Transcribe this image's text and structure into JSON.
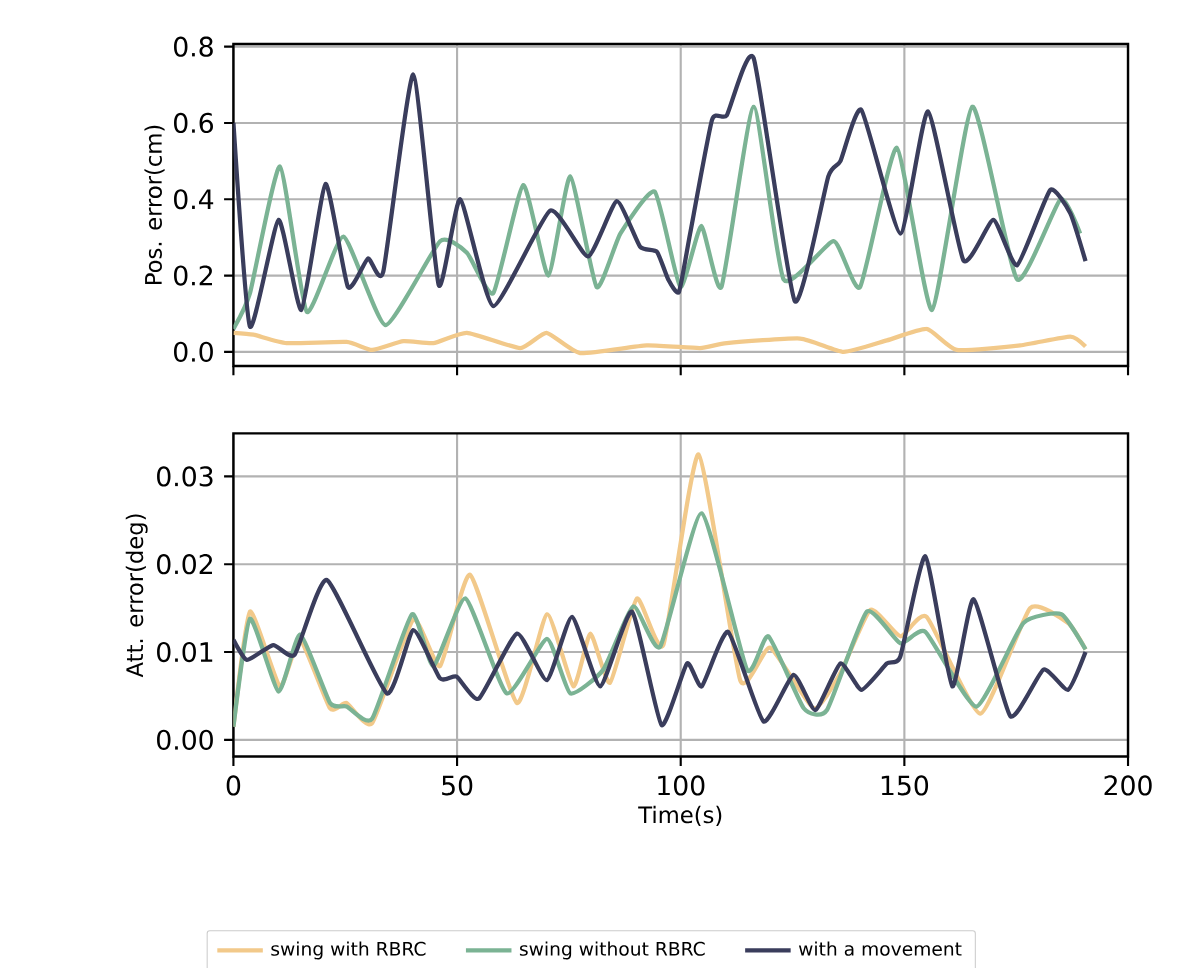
{
  "chart_data": [
    {
      "type": "line",
      "ylabel": "Pos. error(cm)",
      "xlim": [
        0,
        200
      ],
      "xticks": [
        0,
        50,
        100,
        150,
        200
      ],
      "ylim": [
        -0.037,
        0.807
      ],
      "yticks": [
        {
          "value": 0,
          "label": "0.0"
        },
        0.2,
        0.4,
        0.6,
        0.8
      ],
      "grid": true,
      "tick_labels": "y",
      "line_style": "solid",
      "marker": "none",
      "series": [
        {
          "color": "#f2c98a",
          "x": [
            0,
            4.5,
            11.9,
            25.3,
            31,
            38,
            44.7,
            52.2,
            64.1,
            70,
            77.5,
            92.4,
            104.3,
            110.3,
            126.7,
            136.4,
            146.1,
            155,
            161.7,
            175.9,
            187.1,
            190.5
          ],
          "values": [
            0.05,
            0.045,
            0.023,
            0.026,
            0.005,
            0.028,
            0.023,
            0.05,
            0.01,
            0.05,
            -0.003,
            0.017,
            0.01,
            0.023,
            0.035,
            0.0,
            0.03,
            0.06,
            0.005,
            0.017,
            0.04,
            0.014
          ]
        },
        {
          "color": "#7bb394",
          "x": [
            0,
            3.7,
            10.4,
            16.4,
            24.6,
            34,
            46.2,
            52.2,
            58.1,
            64.8,
            70.4,
            75.3,
            81.2,
            86.5,
            94.2,
            99.9,
            104.6,
            109.1,
            116.3,
            123,
            134.2,
            140.1,
            148.3,
            156.2,
            165.2,
            175.2,
            184.9,
            189.3
          ],
          "values": [
            0.06,
            0.154,
            0.486,
            0.105,
            0.302,
            0.07,
            0.29,
            0.26,
            0.154,
            0.437,
            0.2,
            0.46,
            0.17,
            0.31,
            0.42,
            0.17,
            0.33,
            0.17,
            0.643,
            0.19,
            0.29,
            0.17,
            0.535,
            0.11,
            0.643,
            0.19,
            0.4,
            0.31
          ]
        },
        {
          "color": "#3a3d5c",
          "x": [
            0,
            3.7,
            10.1,
            15.2,
            20.6,
            25.6,
            30.1,
            33.5,
            40.2,
            45.9,
            50.7,
            58.1,
            70.8,
            79.3,
            85.7,
            90.9,
            94.7,
            97.2,
            99.6,
            102.1,
            107,
            110.3,
            116.3,
            125.5,
            133,
            135.7,
            140.4,
            149.1,
            155.3,
            163.2,
            169.9,
            175.2,
            182.6,
            187.1,
            190.5
          ],
          "values": [
            0.6,
            0.066,
            0.346,
            0.11,
            0.44,
            0.17,
            0.245,
            0.21,
            0.727,
            0.175,
            0.4,
            0.12,
            0.37,
            0.25,
            0.395,
            0.276,
            0.262,
            0.19,
            0.157,
            0.31,
            0.608,
            0.62,
            0.77,
            0.133,
            0.46,
            0.5,
            0.634,
            0.31,
            0.63,
            0.24,
            0.346,
            0.227,
            0.424,
            0.363,
            0.238
          ]
        }
      ]
    },
    {
      "type": "line",
      "xlabel": "Time(s)",
      "ylabel": "Att. error(deg)",
      "xlim": [
        0,
        200
      ],
      "xticks": [
        0,
        50,
        100,
        150,
        200
      ],
      "ylim": [
        -0.0019,
        0.0349
      ],
      "yticks": [
        {
          "value": 0,
          "label": "0.00"
        },
        0.01,
        0.02,
        0.03
      ],
      "grid": true,
      "legend": "bottom",
      "line_style": "solid",
      "marker": "none",
      "series": [
        {
          "name": "swing with RBRC",
          "color": "#f2c98a",
          "x": [
            0,
            3.7,
            10.4,
            14.9,
            21.6,
            25.3,
            31,
            40.2,
            46.2,
            52.9,
            63.4,
            70.1,
            76,
            79.8,
            84.2,
            90.2,
            96.1,
            104,
            113.3,
            120,
            129.7,
            135.7,
            142.4,
            149.1,
            155,
            167,
            178.1,
            186.6,
            190.5
          ],
          "values": [
            0.0015,
            0.0146,
            0.0061,
            0.0114,
            0.0036,
            0.0042,
            0.0019,
            0.0137,
            0.0084,
            0.0188,
            0.0042,
            0.0143,
            0.0061,
            0.0121,
            0.0065,
            0.0161,
            0.0108,
            0.0325,
            0.0068,
            0.0105,
            0.0036,
            0.0076,
            0.0148,
            0.0118,
            0.014,
            0.003,
            0.015,
            0.0133,
            0.0103
          ]
        },
        {
          "name": "swing without RBRC",
          "color": "#7bb394",
          "x": [
            0,
            3.7,
            10.1,
            14.9,
            21.6,
            25.3,
            31,
            39.9,
            44.7,
            51.9,
            61.1,
            70.1,
            75.3,
            82.7,
            89.4,
            95.4,
            104.7,
            114.8,
            119.6,
            127.5,
            132.7,
            141.6,
            149.1,
            154.7,
            166.1,
            176.6,
            185.1,
            190.5
          ],
          "values": [
            0.0015,
            0.0138,
            0.0055,
            0.012,
            0.0042,
            0.0038,
            0.0024,
            0.0143,
            0.0084,
            0.0161,
            0.0053,
            0.0115,
            0.0053,
            0.008,
            0.0152,
            0.0106,
            0.0258,
            0.008,
            0.0118,
            0.0036,
            0.0034,
            0.0146,
            0.011,
            0.0123,
            0.0038,
            0.0133,
            0.0143,
            0.0103
          ]
        },
        {
          "name": "with a movement",
          "color": "#3a3d5c",
          "x": [
            0,
            3,
            8.9,
            13.7,
            20.9,
            34.3,
            40.2,
            46.2,
            49.9,
            54.9,
            63.4,
            70.1,
            75.7,
            82,
            89.1,
            95.7,
            101.4,
            104.7,
            110.6,
            118.5,
            125.2,
            130.1,
            135.7,
            140.4,
            146.1,
            149.1,
            154.7,
            160.7,
            165.5,
            173.7,
            181.1,
            186.6,
            190.5
          ],
          "values": [
            0.0114,
            0.0091,
            0.0108,
            0.0097,
            0.0182,
            0.0053,
            0.0125,
            0.007,
            0.0072,
            0.0047,
            0.0121,
            0.0068,
            0.014,
            0.0061,
            0.0146,
            0.0017,
            0.0087,
            0.0061,
            0.0123,
            0.0021,
            0.0074,
            0.0034,
            0.0087,
            0.0057,
            0.0087,
            0.0095,
            0.0209,
            0.0061,
            0.016,
            0.0027,
            0.008,
            0.0057,
            0.01
          ]
        }
      ]
    }
  ]
}
